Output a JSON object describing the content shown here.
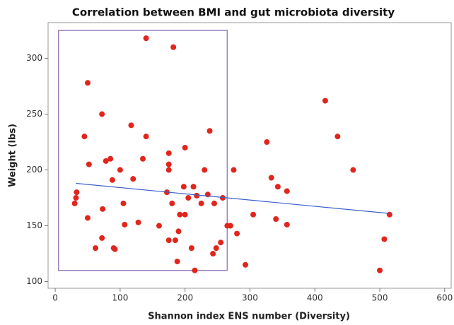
{
  "chart_data": {
    "type": "scatter",
    "title": "Correlation between BMI and gut microbiota diversity",
    "x_label": "Shannon index ENS number (Diversity)",
    "y_label": "Weight (lbs)",
    "xlim": [
      -11,
      610
    ],
    "ylim": [
      94,
      332
    ],
    "xticks": [
      0,
      100,
      200,
      300,
      400,
      500,
      600
    ],
    "yticks": [
      100,
      150,
      200,
      250,
      300
    ],
    "grid": false,
    "series": [
      {
        "color": "#e0261c",
        "x": [
          30,
          32,
          33,
          45,
          50,
          50,
          52,
          62,
          72,
          73,
          72,
          78,
          85,
          88,
          90,
          92,
          100,
          105,
          107,
          117,
          120,
          128,
          135,
          140,
          140,
          160,
          172,
          175,
          175,
          175,
          175,
          180,
          182,
          185,
          188,
          190,
          192,
          198,
          200,
          200,
          205,
          210,
          213,
          215,
          218,
          225,
          230,
          235,
          238,
          243,
          245,
          248,
          255,
          258,
          265,
          270,
          275,
          280,
          293,
          305,
          326,
          333,
          340,
          343,
          357,
          357,
          416,
          435,
          459,
          500,
          507,
          515
        ],
        "values": [
          170,
          175,
          180,
          230,
          278,
          157,
          205,
          130,
          250,
          165,
          139,
          208,
          210,
          191,
          130,
          129,
          200,
          170,
          151,
          240,
          192,
          153,
          210,
          318,
          230,
          150,
          180,
          215,
          205,
          200,
          137,
          170,
          310,
          137,
          118,
          145,
          160,
          185,
          160,
          220,
          175,
          130,
          185,
          110,
          177,
          170,
          200,
          178,
          235,
          125,
          170,
          130,
          135,
          175,
          150,
          150,
          200,
          143,
          115,
          160,
          225,
          193,
          156,
          185,
          181,
          151,
          262,
          230,
          200,
          110,
          138,
          160
        ]
      }
    ],
    "trend_line": {
      "color": "#3a5fcd",
      "x": [
        32,
        515
      ],
      "values": [
        188,
        161
      ]
    },
    "region": {
      "color": "#9a7fbf",
      "x": [
        5,
        265
      ],
      "values": [
        110,
        325
      ]
    }
  }
}
